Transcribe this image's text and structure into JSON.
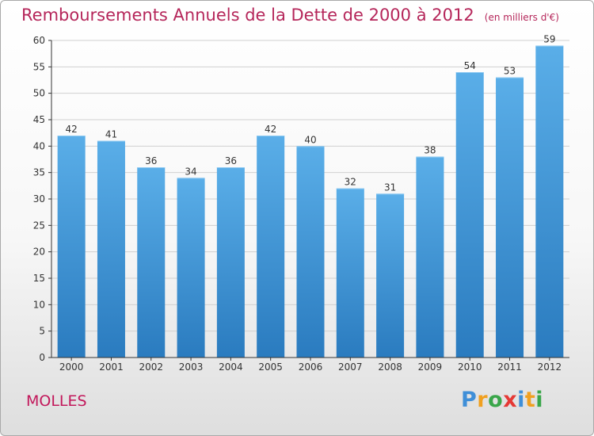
{
  "header": {
    "title": "Remboursements Annuels de la Dette de 2000 à 2012",
    "subtitle": "(en milliers d'€)"
  },
  "footer": {
    "location": "MOLLES",
    "brand_letters": [
      "P",
      "r",
      "o",
      "x",
      "i",
      "t",
      "i"
    ],
    "brand_colors": [
      "#3f8fd8",
      "#f0a020",
      "#3aa64a",
      "#e53935",
      "#3f8fd8",
      "#f0a020",
      "#3aa64a"
    ]
  },
  "colors": {
    "bar_top": "#5aaee8",
    "bar_bottom": "#2a7bbf",
    "title": "#b5265a",
    "axis": "#333333",
    "grid": "#d0d0d0"
  },
  "chart_data": {
    "type": "bar",
    "title": "Remboursements Annuels de la Dette de 2000 à 2012",
    "subtitle": "(en milliers d'€)",
    "xlabel": "",
    "ylabel": "",
    "categories": [
      "2000",
      "2001",
      "2002",
      "2003",
      "2004",
      "2005",
      "2006",
      "2007",
      "2008",
      "2009",
      "2010",
      "2011",
      "2012"
    ],
    "values": [
      42,
      41,
      36,
      34,
      36,
      42,
      40,
      32,
      31,
      38,
      54,
      53,
      59
    ],
    "ylim": [
      0,
      60
    ],
    "yticks": [
      0,
      5,
      10,
      15,
      20,
      25,
      30,
      35,
      40,
      45,
      50,
      55,
      60
    ],
    "grid": true,
    "data_labels": true
  }
}
